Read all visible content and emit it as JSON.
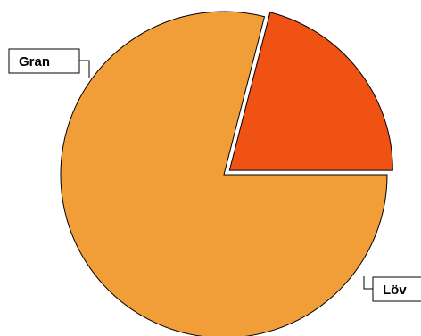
{
  "chart_data": {
    "type": "pie",
    "title": "",
    "slices": [
      {
        "label": "Gran",
        "value": 79,
        "color": "#F29E38",
        "exploded": false
      },
      {
        "label": "Löv",
        "value": 21,
        "color": "#F05214",
        "exploded": true
      }
    ],
    "legend": "none"
  }
}
